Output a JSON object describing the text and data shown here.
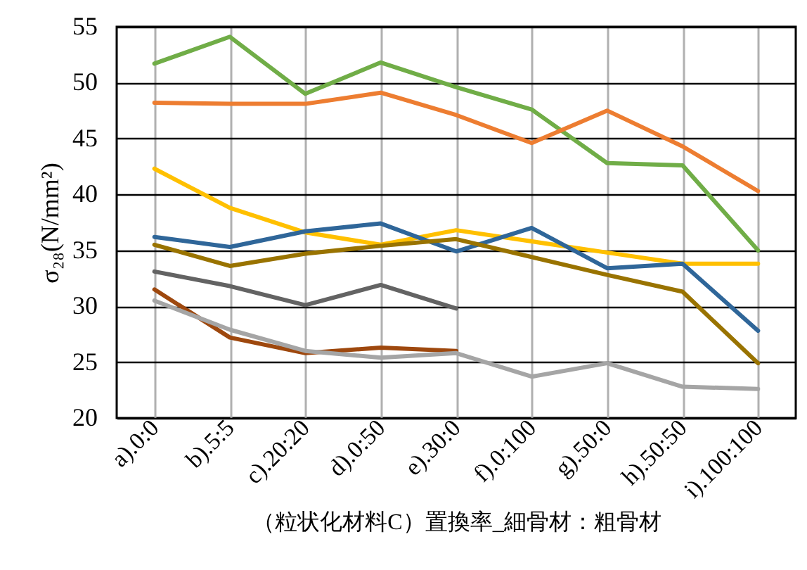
{
  "chart_data": {
    "type": "line",
    "xlabel": "（粒状化材料C）置換率_細骨材：粗骨材",
    "ylabel": "σ₂₈(N/mm²)",
    "categories": [
      "a).0:0",
      "b).5:5",
      "c).20:20",
      "d).0:50",
      "e).30:0",
      "f).0:100",
      "g).50:0",
      "h).50:50",
      "i).100:100"
    ],
    "ylim": [
      20,
      55
    ],
    "yticks": [
      20,
      25,
      30,
      35,
      40,
      45,
      50,
      55
    ],
    "grid": true,
    "marker": "none",
    "line_style": "solid",
    "series": [
      {
        "color": "#70ad47",
        "values": [
          51.7,
          54.1,
          49.0,
          51.8,
          49.6,
          47.6,
          42.8,
          42.6,
          35.0
        ]
      },
      {
        "color": "#ed7d31",
        "values": [
          48.2,
          48.1,
          48.1,
          49.1,
          47.1,
          44.6,
          47.5,
          44.3,
          40.3
        ]
      },
      {
        "color": "#ffc000",
        "values": [
          42.3,
          38.8,
          36.6,
          35.5,
          36.8,
          35.8,
          34.8,
          33.8,
          33.8
        ]
      },
      {
        "color": "#2f6699",
        "values": [
          36.2,
          35.3,
          36.7,
          37.4,
          34.9,
          37.0,
          33.4,
          33.8,
          27.8
        ]
      },
      {
        "color": "#997300",
        "values": [
          35.5,
          33.6,
          34.7,
          35.4,
          36.0,
          34.4,
          32.8,
          31.3,
          24.9
        ]
      },
      {
        "color": "#636363",
        "values": [
          33.1,
          31.8,
          30.1,
          31.9,
          29.8,
          null,
          null,
          null,
          null
        ]
      },
      {
        "color": "#9e480e",
        "values": [
          31.5,
          27.2,
          25.8,
          26.3,
          26.0,
          null,
          null,
          null,
          null
        ]
      },
      {
        "color": "#a5a5a5",
        "values": [
          30.5,
          27.9,
          26.0,
          25.4,
          25.8,
          23.7,
          24.9,
          22.8,
          22.6
        ]
      }
    ]
  }
}
